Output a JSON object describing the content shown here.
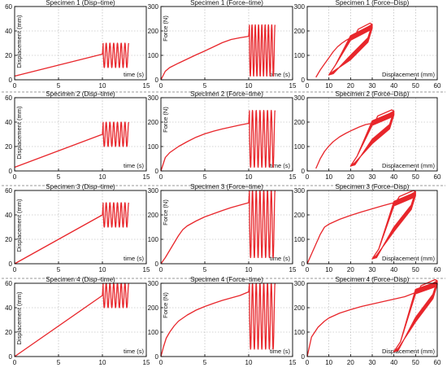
{
  "figure": {
    "line_color": "#e8262b",
    "separator": "dashed-gray-line-between-rows"
  },
  "chart_data": [
    {
      "id": "s1-disp-time",
      "type": "line",
      "title": "Specimen 1 (Disp–time)",
      "xlabel": "time (s)",
      "ylabel": "Displacement (mm)",
      "xlim": [
        0,
        15
      ],
      "ylim": [
        0,
        60
      ],
      "xticks": [
        0,
        5,
        10,
        15
      ],
      "yticks": [
        0,
        20,
        40,
        60
      ],
      "grid": true,
      "ramp": {
        "x": [
          0,
          10
        ],
        "y": [
          3,
          21
        ]
      },
      "oscillation": {
        "t_start": 10,
        "t_end": 13,
        "cycles": 7,
        "min": 10,
        "max": 30
      }
    },
    {
      "id": "s1-force-time",
      "type": "line",
      "title": "Specimen 1 (Force–time)",
      "xlabel": "time (s)",
      "ylabel": "Force (N)",
      "xlim": [
        0,
        15
      ],
      "ylim": [
        0,
        300
      ],
      "xticks": [
        0,
        5,
        10,
        15
      ],
      "yticks": [
        0,
        100,
        200,
        300
      ],
      "grid": true,
      "ramp": {
        "x": [
          0,
          0.5,
          1,
          2,
          3,
          4,
          5,
          6,
          7,
          8,
          9,
          10
        ],
        "y": [
          0,
          35,
          50,
          68,
          85,
          102,
          118,
          135,
          152,
          165,
          172,
          178
        ]
      },
      "oscillation": {
        "t_start": 10,
        "t_end": 13,
        "cycles": 8,
        "min": 15,
        "max": 225
      }
    },
    {
      "id": "s1-force-disp",
      "type": "line",
      "title": "Specimen 1 (Force–Disp)",
      "xlabel": "Displacement (mm)",
      "ylabel": "",
      "xlim": [
        0,
        60
      ],
      "ylim": [
        0,
        300
      ],
      "xticks": [
        0,
        10,
        20,
        30,
        40,
        50,
        60
      ],
      "yticks": [
        0,
        100,
        200,
        300
      ],
      "grid": true,
      "loading": {
        "x": [
          4,
          6,
          8,
          10,
          12,
          14,
          16,
          18,
          20,
          21
        ],
        "y": [
          10,
          40,
          65,
          90,
          115,
          135,
          150,
          162,
          172,
          178
        ]
      },
      "loops": {
        "x_min": 10,
        "x_max": 30,
        "f_max": 232,
        "upper_mid": 180,
        "lower_mid": 100
      }
    },
    {
      "id": "s2-disp-time",
      "type": "line",
      "title": "Specimen 2 (Disp–time)",
      "xlabel": "time (s)",
      "ylabel": "Displacement (mm)",
      "xlim": [
        0,
        15
      ],
      "ylim": [
        0,
        60
      ],
      "xticks": [
        0,
        5,
        10,
        15
      ],
      "yticks": [
        0,
        20,
        40,
        60
      ],
      "grid": true,
      "ramp": {
        "x": [
          0,
          10
        ],
        "y": [
          3,
          30
        ]
      },
      "oscillation": {
        "t_start": 10,
        "t_end": 13,
        "cycles": 7,
        "min": 20,
        "max": 40
      }
    },
    {
      "id": "s2-force-time",
      "type": "line",
      "title": "Specimen 2 (Force–time)",
      "xlabel": "time (s)",
      "ylabel": "Force (N)",
      "xlim": [
        0,
        15
      ],
      "ylim": [
        0,
        300
      ],
      "xticks": [
        0,
        5,
        10,
        15
      ],
      "yticks": [
        0,
        100,
        200,
        300
      ],
      "grid": true,
      "ramp": {
        "x": [
          0,
          0.5,
          1,
          2,
          3,
          4,
          5,
          6,
          7,
          8,
          9,
          10
        ],
        "y": [
          0,
          55,
          75,
          100,
          120,
          138,
          152,
          163,
          172,
          180,
          188,
          195
        ]
      },
      "oscillation": {
        "t_start": 10,
        "t_end": 13,
        "cycles": 7,
        "min": 15,
        "max": 248
      }
    },
    {
      "id": "s2-force-disp",
      "type": "line",
      "title": "Specimen 2 (Force–Disp)",
      "xlabel": "Displacement (mm)",
      "ylabel": "",
      "xlim": [
        0,
        60
      ],
      "ylim": [
        0,
        300
      ],
      "xticks": [
        0,
        10,
        20,
        30,
        40,
        50,
        60
      ],
      "yticks": [
        0,
        100,
        200,
        300
      ],
      "grid": true,
      "loading": {
        "x": [
          4,
          6,
          8,
          10,
          12,
          15,
          18,
          21,
          24,
          27,
          30
        ],
        "y": [
          10,
          50,
          80,
          102,
          120,
          140,
          155,
          168,
          180,
          190,
          195
        ]
      },
      "loops": {
        "x_min": 20,
        "x_max": 40,
        "f_max": 250,
        "upper_mid": 205,
        "lower_mid": 130
      }
    },
    {
      "id": "s3-disp-time",
      "type": "line",
      "title": "Specimen 3 (Disp–time)",
      "xlabel": "time (s)",
      "ylabel": "Displacement (mm)",
      "xlim": [
        0,
        15
      ],
      "ylim": [
        0,
        60
      ],
      "xticks": [
        0,
        5,
        10,
        15
      ],
      "yticks": [
        0,
        20,
        40,
        60
      ],
      "grid": true,
      "ramp": {
        "x": [
          0,
          10
        ],
        "y": [
          0,
          40
        ]
      },
      "oscillation": {
        "t_start": 10,
        "t_end": 13,
        "cycles": 7,
        "min": 30,
        "max": 50
      }
    },
    {
      "id": "s3-force-time",
      "type": "line",
      "title": "Specimen 3 (Force–time)",
      "xlabel": "time (s)",
      "ylabel": "Force (N)",
      "xlim": [
        0,
        15
      ],
      "ylim": [
        0,
        300
      ],
      "xticks": [
        0,
        5,
        10,
        15
      ],
      "yticks": [
        0,
        100,
        200,
        300
      ],
      "grid": true,
      "ramp": {
        "x": [
          0,
          0.5,
          1,
          1.5,
          2,
          2.5,
          3,
          4,
          5,
          6,
          7,
          8,
          9,
          10
        ],
        "y": [
          0,
          25,
          55,
          85,
          115,
          140,
          155,
          175,
          192,
          205,
          218,
          230,
          240,
          250
        ]
      },
      "oscillation": {
        "t_start": 10,
        "t_end": 13,
        "cycles": 7,
        "min": 25,
        "max": 300
      }
    },
    {
      "id": "s3-force-disp",
      "type": "line",
      "title": "Specimen 3 (Force–Disp)",
      "xlabel": "Displacement (mm)",
      "ylabel": "",
      "xlim": [
        0,
        60
      ],
      "ylim": [
        0,
        300
      ],
      "xticks": [
        0,
        10,
        20,
        30,
        40,
        50,
        60
      ],
      "yticks": [
        0,
        100,
        200,
        300
      ],
      "grid": true,
      "loading": {
        "x": [
          0,
          3,
          6,
          8,
          10,
          15,
          20,
          25,
          30,
          35,
          40
        ],
        "y": [
          0,
          60,
          120,
          150,
          162,
          182,
          198,
          212,
          225,
          238,
          250
        ]
      },
      "loops": {
        "x_min": 30,
        "x_max": 50,
        "f_max": 300,
        "upper_mid": 255,
        "lower_mid": 150
      }
    },
    {
      "id": "s4-disp-time",
      "type": "line",
      "title": "Specimen 4 (Disp–time)",
      "xlabel": "time (s)",
      "ylabel": "Displacement (mm)",
      "xlim": [
        0,
        15
      ],
      "ylim": [
        0,
        60
      ],
      "xticks": [
        0,
        5,
        10,
        15
      ],
      "yticks": [
        0,
        20,
        40,
        60
      ],
      "grid": true,
      "ramp": {
        "x": [
          0,
          10
        ],
        "y": [
          0,
          50
        ]
      },
      "oscillation": {
        "t_start": 10,
        "t_end": 13,
        "cycles": 7,
        "min": 40,
        "max": 60
      }
    },
    {
      "id": "s4-force-time",
      "type": "line",
      "title": "Specimen 4 (Force–time)",
      "xlabel": "time (s)",
      "ylabel": "Force (N)",
      "xlim": [
        0,
        15
      ],
      "ylim": [
        0,
        300
      ],
      "xticks": [
        0,
        5,
        10,
        15
      ],
      "yticks": [
        0,
        100,
        200,
        300
      ],
      "grid": true,
      "ramp": {
        "x": [
          0,
          0.3,
          0.6,
          1,
          1.5,
          2,
          3,
          4,
          5,
          6,
          7,
          8,
          9,
          10
        ],
        "y": [
          0,
          40,
          75,
          100,
          125,
          145,
          170,
          190,
          205,
          218,
          230,
          240,
          250,
          265
        ]
      },
      "oscillation": {
        "t_start": 10,
        "t_end": 13,
        "cycles": 7,
        "min": 30,
        "max": 300
      }
    },
    {
      "id": "s4-force-disp",
      "type": "line",
      "title": "Specimen 4 (Force–Disp)",
      "xlabel": "Displacement (mm)",
      "ylabel": "",
      "xlim": [
        0,
        60
      ],
      "ylim": [
        0,
        300
      ],
      "xticks": [
        0,
        10,
        20,
        30,
        40,
        50,
        60
      ],
      "yticks": [
        0,
        100,
        200,
        300
      ],
      "grid": true,
      "loading": {
        "x": [
          0,
          2,
          5,
          8,
          10,
          15,
          20,
          25,
          30,
          35,
          40,
          45,
          50
        ],
        "y": [
          0,
          80,
          120,
          145,
          158,
          178,
          192,
          205,
          215,
          225,
          235,
          245,
          262
        ]
      },
      "loops": {
        "x_min": 40,
        "x_max": 60,
        "f_max": 315,
        "upper_mid": 275,
        "lower_mid": 160
      }
    }
  ]
}
